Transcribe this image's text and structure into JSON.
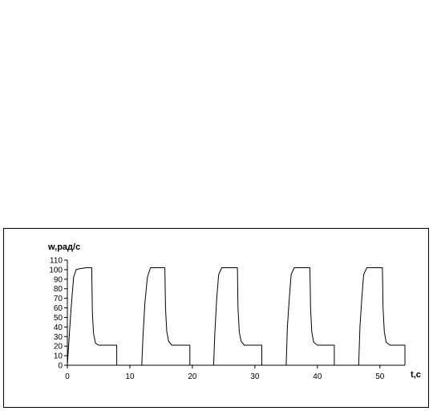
{
  "chart_data": {
    "type": "line",
    "ylabel": "w,рад/с",
    "xlabel": "t,c",
    "xlim": [
      0,
      54
    ],
    "ylim": [
      0,
      110
    ],
    "xticks": [
      0,
      10,
      20,
      30,
      40,
      50
    ],
    "yticks": [
      0,
      10,
      20,
      30,
      40,
      50,
      60,
      70,
      80,
      90,
      100,
      110
    ],
    "grid": false,
    "legend": "none",
    "line_color": "#000000",
    "series": [
      {
        "x": [
          0,
          0.3,
          0.6,
          1.0,
          1.4,
          2.0,
          3.0,
          3.9,
          4.0,
          4.2,
          4.5,
          5.0,
          7.9,
          7.9,
          11.9,
          12.1,
          12.4,
          12.8,
          13.3,
          15.6,
          15.7,
          15.9,
          16.2,
          16.7,
          19.6,
          19.6,
          23.4,
          23.6,
          23.9,
          24.2,
          24.7,
          27.2,
          27.3,
          27.5,
          27.8,
          28.3,
          31.1,
          31.1,
          35.0,
          35.2,
          35.5,
          35.8,
          36.3,
          38.8,
          38.9,
          39.1,
          39.4,
          40.0,
          42.7,
          42.7,
          46.6,
          46.8,
          47.1,
          47.4,
          47.9,
          50.4,
          50.5,
          50.7,
          51.0,
          51.6,
          54.0,
          54.0
        ],
        "y": [
          0,
          30,
          60,
          92,
          100,
          101,
          102,
          102,
          55,
          33,
          23,
          21,
          21,
          0,
          0,
          30,
          65,
          92,
          102,
          102,
          60,
          35,
          25,
          21,
          21,
          0,
          0,
          35,
          70,
          95,
          102,
          102,
          60,
          35,
          25,
          21,
          21,
          0,
          0,
          40,
          70,
          95,
          102,
          102,
          60,
          35,
          24,
          21,
          21,
          0,
          0,
          40,
          70,
          95,
          102,
          102,
          60,
          35,
          24,
          21,
          21,
          0
        ]
      }
    ]
  }
}
